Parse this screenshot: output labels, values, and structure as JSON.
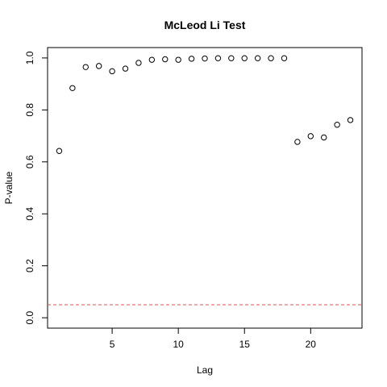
{
  "chart_data": {
    "type": "scatter",
    "title": "McLeod Li Test",
    "xlabel": "Lag",
    "ylabel": "P-value",
    "xlim": [
      0.12,
      23.88
    ],
    "ylim": [
      -0.04,
      1.04
    ],
    "x_ticks": [
      5,
      10,
      15,
      20
    ],
    "y_ticks": [
      0.0,
      0.2,
      0.4,
      0.6,
      0.8,
      1.0
    ],
    "y_tick_labels": [
      "0.0",
      "0.2",
      "0.4",
      "0.6",
      "0.8",
      "1.0"
    ],
    "x_tick_labels": [
      "5",
      "10",
      "15",
      "20"
    ],
    "x": [
      1,
      2,
      3,
      4,
      5,
      6,
      7,
      8,
      9,
      10,
      11,
      12,
      13,
      14,
      15,
      16,
      17,
      18,
      19,
      20,
      21,
      22,
      23
    ],
    "y": [
      0.642,
      0.884,
      0.965,
      0.969,
      0.949,
      0.959,
      0.981,
      0.993,
      0.995,
      0.993,
      0.997,
      0.998,
      0.999,
      0.999,
      0.999,
      0.999,
      0.999,
      0.999,
      0.677,
      0.699,
      0.694,
      0.743,
      0.761
    ],
    "reference_line": {
      "y": 0.05,
      "color": "#e05050",
      "style": "dashed"
    },
    "point_color": "#000000",
    "grid": false
  }
}
